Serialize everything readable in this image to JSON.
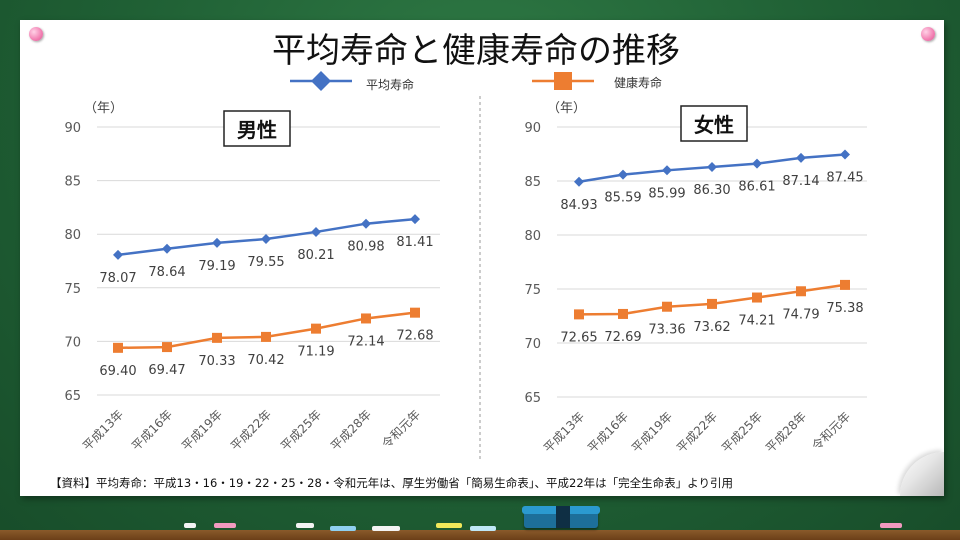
{
  "title": "平均寿命と健康寿命の推移",
  "legend": {
    "series1": "平均寿命",
    "series2": "健康寿命"
  },
  "source_note": "【資料】平均寿命：平成13・16・19・22・25・28・令和元年は、厚生労働省「簡易生命表」、平成22年は「完全生命表」より引用",
  "colors": {
    "series1": "#4472c4",
    "series2": "#ed7d31"
  },
  "chart_data": [
    {
      "type": "line",
      "title": "男性",
      "ylabel": "（年）",
      "ylim": [
        65,
        90
      ],
      "yticks": [
        65,
        70,
        75,
        80,
        85,
        90
      ],
      "categories": [
        "平成13年",
        "平成16年",
        "平成19年",
        "平成22年",
        "平成25年",
        "平成28年",
        "令和元年"
      ],
      "series": [
        {
          "name": "平均寿命",
          "marker": "diamond",
          "values": [
            78.07,
            78.64,
            79.19,
            79.55,
            80.21,
            80.98,
            81.41
          ]
        },
        {
          "name": "健康寿命",
          "marker": "square",
          "values": [
            69.4,
            69.47,
            70.33,
            70.42,
            71.19,
            72.14,
            72.68
          ]
        }
      ],
      "grid": true,
      "legend": "top"
    },
    {
      "type": "line",
      "title": "女性",
      "ylabel": "（年）",
      "ylim": [
        65,
        90
      ],
      "yticks": [
        65,
        70,
        75,
        80,
        85,
        90
      ],
      "categories": [
        "平成13年",
        "平成16年",
        "平成19年",
        "平成22年",
        "平成25年",
        "平成28年",
        "令和元年"
      ],
      "series": [
        {
          "name": "平均寿命",
          "marker": "diamond",
          "values": [
            84.93,
            85.59,
            85.99,
            86.3,
            86.61,
            87.14,
            87.45
          ]
        },
        {
          "name": "健康寿命",
          "marker": "square",
          "values": [
            72.65,
            72.69,
            73.36,
            73.62,
            74.21,
            74.79,
            75.38
          ]
        }
      ],
      "grid": true,
      "legend": "top"
    }
  ]
}
